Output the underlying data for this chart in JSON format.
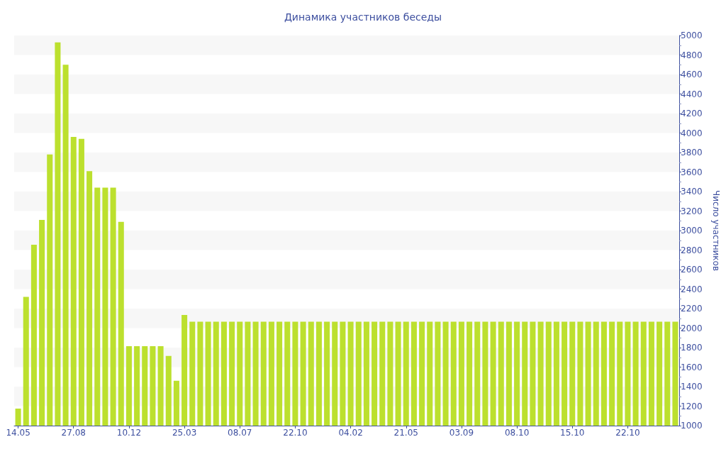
{
  "chart_data": {
    "type": "bar",
    "title": "Динамика участников беседы",
    "ylabel": "Число участников",
    "categories": [
      "14.05",
      null,
      null,
      null,
      null,
      null,
      null,
      "27.08",
      null,
      null,
      null,
      null,
      null,
      null,
      "10.12",
      null,
      null,
      null,
      null,
      null,
      null,
      "25.03",
      null,
      null,
      null,
      null,
      null,
      null,
      "08.07",
      null,
      null,
      null,
      null,
      null,
      null,
      "22.10",
      null,
      null,
      null,
      null,
      null,
      null,
      "04.02",
      null,
      null,
      null,
      null,
      null,
      null,
      "21.05",
      null,
      null,
      null,
      null,
      null,
      null,
      "03.09",
      null,
      null,
      null,
      null,
      null,
      null,
      "08.10",
      null,
      null,
      null,
      null,
      null,
      null,
      "15.10",
      null,
      null,
      null,
      null,
      null,
      null,
      "22.10",
      null,
      null,
      null,
      null,
      null,
      null
    ],
    "values": [
      1175,
      2320,
      2855,
      3110,
      3780,
      4930,
      4700,
      3960,
      3940,
      3610,
      3440,
      3440,
      3440,
      3090,
      1815,
      1815,
      1815,
      1815,
      1815,
      1715,
      1460,
      2135,
      2065,
      2065,
      2065,
      2065,
      2065,
      2065,
      2065,
      2065,
      2065,
      2065,
      2065,
      2065,
      2065,
      2065,
      2065,
      2065,
      2065,
      2065,
      2065,
      2065,
      2065,
      2065,
      2065,
      2065,
      2065,
      2065,
      2065,
      2065,
      2065,
      2065,
      2065,
      2065,
      2065,
      2065,
      2065,
      2065,
      2065,
      2065,
      2065,
      2065,
      2065,
      2065,
      2065,
      2065,
      2065,
      2065,
      2065,
      2065,
      2065,
      2065,
      2065,
      2065,
      2065,
      2065,
      2065,
      2065,
      2065,
      2065,
      2065,
      2065,
      2065,
      2065
    ],
    "color": "#bce02e",
    "ylim": [
      1000,
      5000
    ],
    "yticks": [
      1000,
      1200,
      1400,
      1600,
      1800,
      2000,
      2200,
      2400,
      2600,
      2800,
      3000,
      3200,
      3400,
      3600,
      3800,
      4000,
      4200,
      4400,
      4600,
      4800,
      5000
    ],
    "bands": [
      {
        "axis": "y",
        "from": 1200,
        "to": 1400,
        "color": "#f7f7f7"
      },
      {
        "axis": "y",
        "from": 1600,
        "to": 1800,
        "color": "#f7f7f7"
      },
      {
        "axis": "y",
        "from": 2000,
        "to": 2200,
        "color": "#f7f7f7"
      },
      {
        "axis": "y",
        "from": 2400,
        "to": 2600,
        "color": "#f7f7f7"
      },
      {
        "axis": "y",
        "from": 2800,
        "to": 3000,
        "color": "#f7f7f7"
      },
      {
        "axis": "y",
        "from": 3200,
        "to": 3400,
        "color": "#f7f7f7"
      },
      {
        "axis": "y",
        "from": 3600,
        "to": 3800,
        "color": "#f7f7f7"
      },
      {
        "axis": "y",
        "from": 4000,
        "to": 4200,
        "color": "#f7f7f7"
      },
      {
        "axis": "y",
        "from": 4400,
        "to": 4600,
        "color": "#f7f7f7"
      },
      {
        "axis": "y",
        "from": 4800,
        "to": 5000,
        "color": "#f7f7f7"
      }
    ]
  }
}
